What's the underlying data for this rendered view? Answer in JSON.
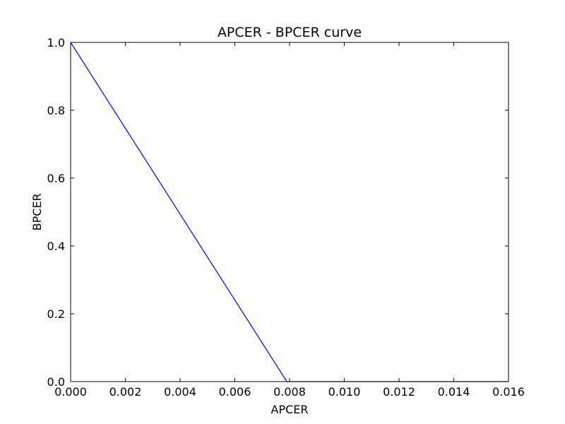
{
  "chart_data": {
    "type": "line",
    "title": "APCER - BPCER curve",
    "xlabel": "APCER",
    "ylabel": "BPCER",
    "xlim": [
      0.0,
      0.016
    ],
    "ylim": [
      0.0,
      1.0
    ],
    "xticks": [
      0.0,
      0.002,
      0.004,
      0.006,
      0.008,
      0.01,
      0.012,
      0.014,
      0.016
    ],
    "xtick_labels": [
      "0.000",
      "0.002",
      "0.004",
      "0.006",
      "0.008",
      "0.010",
      "0.012",
      "0.014",
      "0.016"
    ],
    "yticks": [
      0.0,
      0.2,
      0.4,
      0.6,
      0.8,
      1.0
    ],
    "ytick_labels": [
      "0.0",
      "0.2",
      "0.4",
      "0.6",
      "0.8",
      "1.0"
    ],
    "grid": false,
    "series": [
      {
        "name": "APCER - BPCER curve",
        "color": "#0000ff",
        "x": [
          0.0,
          0.0079,
          0.016
        ],
        "y": [
          1.0,
          0.0,
          0.0
        ]
      }
    ]
  }
}
